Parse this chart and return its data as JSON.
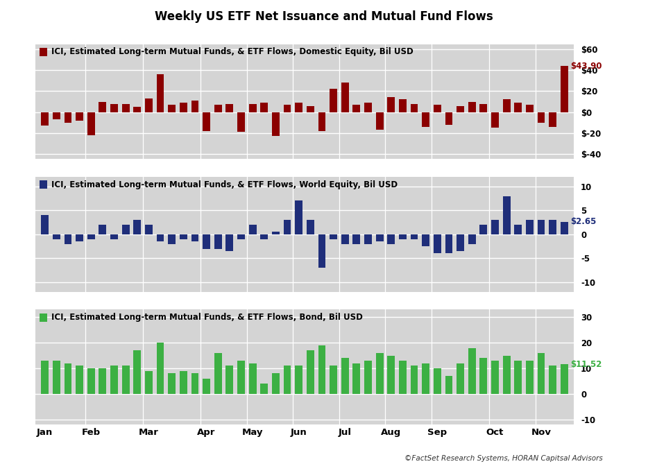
{
  "title": "Weekly US ETF Net Issuance and Mutual Fund Flows",
  "subtitle": "©FactSet Research Systems, HORAN Capitsal Advisors",
  "panel1": {
    "label": "ICI, Estimated Long-term Mutual Funds, & ETF Flows, Domestic Equity, Bil USD",
    "color": "#8B0000",
    "last_label": "$43.90",
    "ylim": [
      -45,
      65
    ],
    "yticks": [
      -40,
      -20,
      0,
      20,
      40,
      60
    ],
    "ytick_labels": [
      "$-40",
      "$-20",
      "$0",
      "$20",
      "$40",
      "$60"
    ],
    "values": [
      -13,
      -7,
      -10,
      -8,
      -22,
      10,
      8,
      8,
      5,
      13,
      36,
      7,
      9,
      11,
      -18,
      7,
      8,
      -19,
      8,
      9,
      -23,
      7,
      9,
      6,
      -18,
      22,
      28,
      7,
      9,
      -17,
      14,
      12,
      8,
      -14,
      7,
      -12,
      6,
      10,
      8,
      -15,
      12,
      9,
      7,
      -10,
      -14,
      43.9
    ]
  },
  "panel2": {
    "label": "ICI, Estimated Long-term Mutual Funds, & ETF Flows, World Equity, Bil USD",
    "color": "#1F2E7A",
    "last_label": "$2.65",
    "ylim": [
      -12,
      12
    ],
    "yticks": [
      -10,
      -5,
      0,
      5,
      10
    ],
    "ytick_labels": [
      "-10",
      "-5",
      "0",
      "5",
      "10"
    ],
    "values": [
      4,
      -1,
      -2,
      -1.5,
      -1,
      2,
      -1,
      2,
      3,
      2,
      -1.5,
      -2,
      -1,
      -1.5,
      -3,
      -3,
      -3.5,
      -1,
      2,
      -1,
      0.5,
      3,
      7,
      3,
      -7,
      -1,
      -2,
      -2,
      -2,
      -1.5,
      -2,
      -1,
      -1,
      -2.5,
      -4,
      -4,
      -3.5,
      -2,
      2,
      3,
      8,
      2,
      3,
      3,
      3,
      2.65
    ]
  },
  "panel3": {
    "label": "ICI, Estimated Long-term Mutual Funds, & ETF Flows, Bond, Bil USD",
    "color": "#3CB043",
    "last_label": "$11.52",
    "ylim": [
      -12,
      33
    ],
    "yticks": [
      -10,
      0,
      10,
      20,
      30
    ],
    "ytick_labels": [
      "-10",
      "0",
      "10",
      "20",
      "30"
    ],
    "values": [
      13,
      13,
      12,
      11,
      10,
      10,
      11,
      11,
      17,
      9,
      20,
      8,
      9,
      8,
      6,
      16,
      11,
      13,
      12,
      4,
      8,
      11,
      11,
      17,
      19,
      11,
      14,
      12,
      13,
      16,
      15,
      13,
      11,
      12,
      10,
      7,
      12,
      18,
      14,
      13,
      15,
      13,
      13,
      16,
      11,
      11.52
    ]
  },
  "n_bars": 46,
  "bg_color": "#d4d4d4",
  "grid_color": "white",
  "bar_width": 0.65,
  "month_positions": [
    0,
    4,
    9,
    14,
    18,
    22,
    26,
    30,
    34,
    39,
    43
  ],
  "month_labels": [
    "Jan",
    "Feb",
    "Mar",
    "Apr",
    "May",
    "Jun",
    "Jul",
    "Aug",
    "Sep",
    "Oct",
    "Nov"
  ]
}
